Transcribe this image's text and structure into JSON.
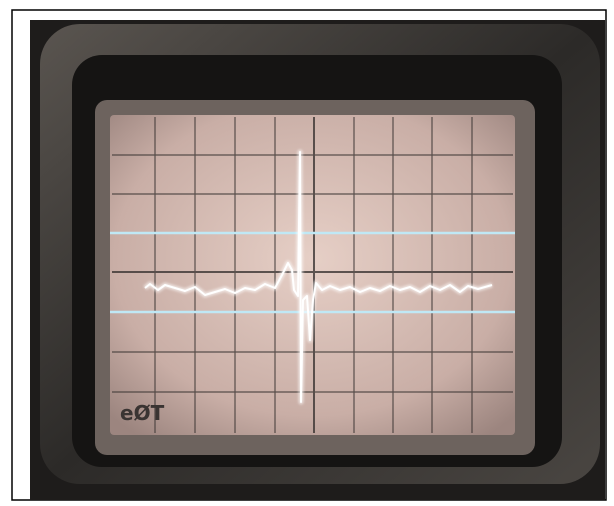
{
  "screen": {
    "logo": "eØT"
  }
}
